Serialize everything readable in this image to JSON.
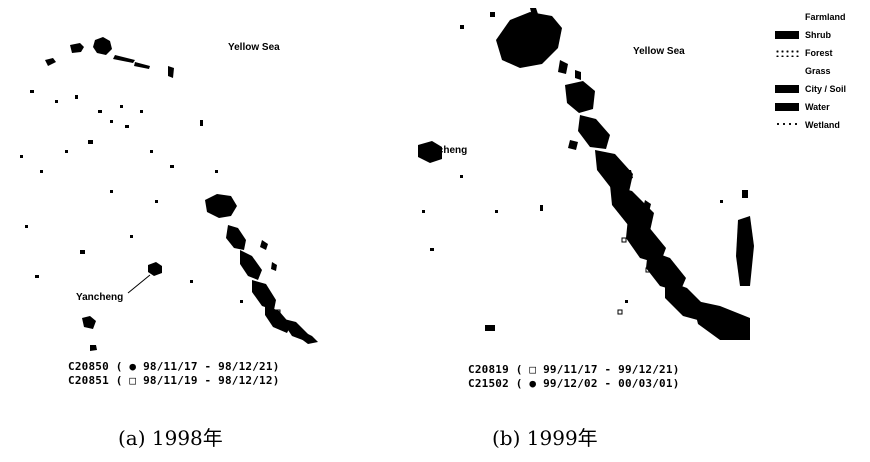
{
  "panel_a": {
    "sea_label": "Yellow Sea",
    "city_label": "Yancheng",
    "tracks": [
      {
        "id": "C20850",
        "marker": "●",
        "dates": "98/11/17 - 98/12/21"
      },
      {
        "id": "C20851",
        "marker": "□",
        "dates": "98/11/19 - 98/12/12"
      }
    ],
    "caption": "(a)  1998年"
  },
  "panel_b": {
    "sea_label": "Yellow Sea",
    "city_label": "Yancheng",
    "tracks": [
      {
        "id": "C20819",
        "marker": "□",
        "dates": "99/11/17 - 99/12/21"
      },
      {
        "id": "C21502",
        "marker": "●",
        "dates": "99/12/02 - 00/03/01"
      }
    ],
    "caption": "(b)  1999年"
  },
  "legend": {
    "items": [
      {
        "label": "Farmland",
        "swatch": "none"
      },
      {
        "label": "Shrub",
        "swatch": "#000000"
      },
      {
        "label": "Forest",
        "swatch": "dots"
      },
      {
        "label": "Grass",
        "swatch": "none"
      },
      {
        "label": "City / Soil",
        "swatch": "#000000"
      },
      {
        "label": "Water",
        "swatch": "#000000"
      },
      {
        "label": "Wetland",
        "swatch": "dots"
      }
    ]
  },
  "colors": {
    "land_patch": "#000000",
    "background": "#ffffff"
  }
}
